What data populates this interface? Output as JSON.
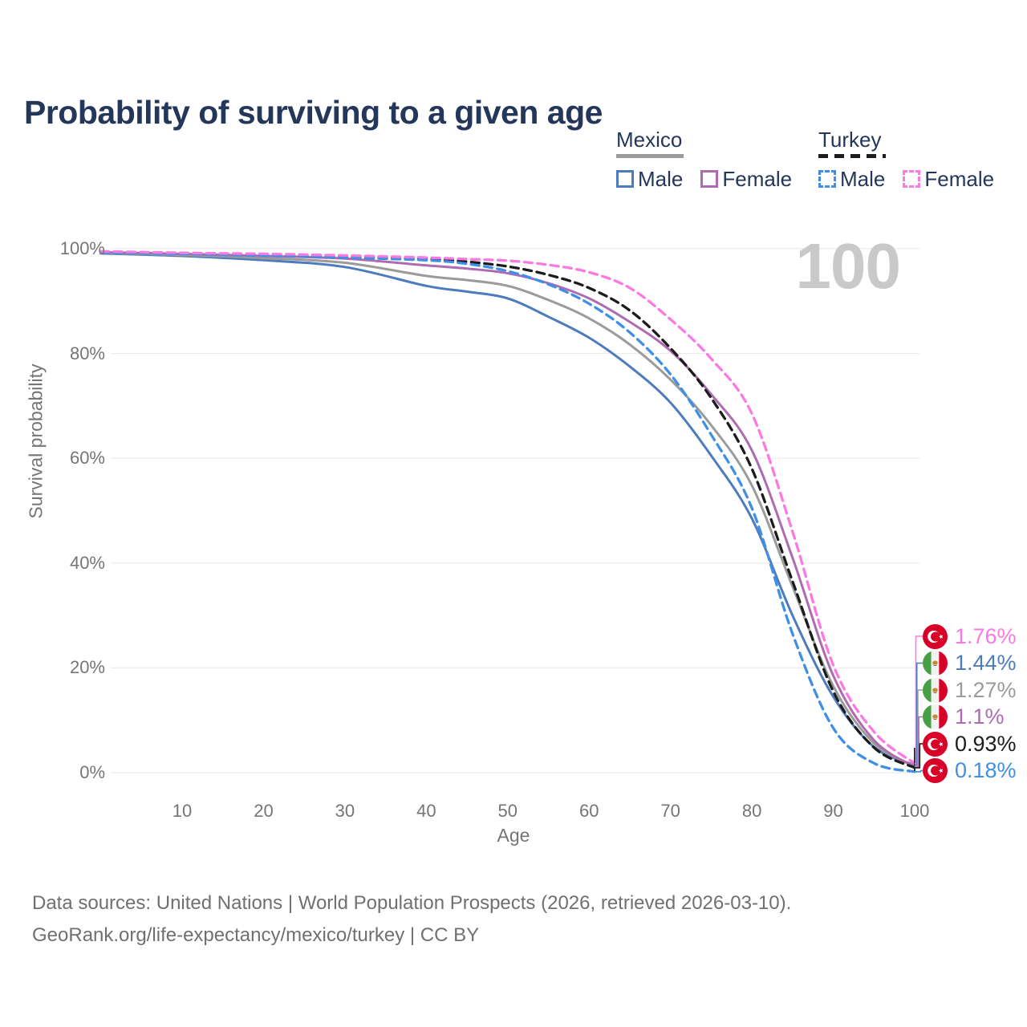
{
  "title": "Probability of surviving to a given age",
  "watermark": "100",
  "theme": {
    "title_color": "#24365a",
    "legend_text_color": "#24365a",
    "axis_text_color": "#757575",
    "grid_color": "#ececec",
    "watermark_color": "#c9c9c9",
    "footer_color": "#707070",
    "marker_color": "#2b2b2b"
  },
  "legend": {
    "groups": [
      {
        "title": "Mexico",
        "line": {
          "color": "#9b9b9b",
          "dash": false
        },
        "items": [
          {
            "label": "Male",
            "color": "#4d7cbe",
            "dash": false
          },
          {
            "label": "Female",
            "color": "#ae6cb0",
            "dash": false
          }
        ]
      },
      {
        "title": "Turkey",
        "line": {
          "color": "#1c1c1c",
          "dash": true
        },
        "items": [
          {
            "label": "Male",
            "color": "#3f8fe6",
            "dash": true
          },
          {
            "label": "Female",
            "color": "#fa7ae2",
            "dash": true
          }
        ]
      }
    ]
  },
  "chart_data": {
    "type": "line",
    "title": "Probability of surviving to a given age",
    "xlabel": "Age",
    "ylabel": "Survival probability",
    "xlim": [
      0,
      100
    ],
    "ylim": [
      0,
      100
    ],
    "grid": "horizontal",
    "x_ticks": [
      10,
      20,
      30,
      40,
      50,
      60,
      70,
      80,
      90,
      100
    ],
    "y_ticks_percent": [
      0,
      20,
      40,
      60,
      80,
      100
    ],
    "hover_age": 100,
    "ages": [
      0,
      10,
      20,
      30,
      40,
      45,
      50,
      55,
      60,
      65,
      70,
      75,
      80,
      85,
      90,
      95,
      100
    ],
    "series": [
      {
        "id": "mexico-male",
        "name": "Mexico Male",
        "country": "mexico",
        "sex": "male",
        "color": "#4d7cbe",
        "dash": false,
        "values": [
          99.1,
          98.6,
          97.8,
          96.5,
          92.9,
          91.8,
          90.5,
          87.0,
          83.0,
          77.5,
          70.6,
          60.5,
          48.5,
          30.0,
          14.5,
          4.9,
          1.44
        ],
        "end_label": "1.44%"
      },
      {
        "id": "mexico-total",
        "name": "Mexico",
        "country": "mexico",
        "sex": "both",
        "color": "#9b9b9b",
        "dash": false,
        "values": [
          99.2,
          98.8,
          98.2,
          97.3,
          94.8,
          94.0,
          92.9,
          90.2,
          86.7,
          81.7,
          75.0,
          66.3,
          54.8,
          35.5,
          16.5,
          5.6,
          1.27
        ],
        "end_label": "1.27%"
      },
      {
        "id": "mexico-female",
        "name": "Mexico Female",
        "country": "mexico",
        "sex": "female",
        "color": "#ae6cb0",
        "dash": false,
        "values": [
          99.3,
          99.0,
          98.6,
          98.1,
          96.8,
          96.2,
          95.3,
          93.4,
          90.5,
          86.0,
          80.5,
          72.2,
          61.5,
          41.0,
          18.5,
          6.2,
          1.1
        ],
        "end_label": "1.1%"
      },
      {
        "id": "turkey-total",
        "name": "Turkey",
        "country": "turkey",
        "sex": "both",
        "color": "#1c1c1c",
        "dash": true,
        "values": [
          99.4,
          99.1,
          98.8,
          98.5,
          98.0,
          97.5,
          96.6,
          95.0,
          92.5,
          88.2,
          81.0,
          71.5,
          58.0,
          36.5,
          15.5,
          4.8,
          0.93
        ],
        "end_label": "0.93%"
      },
      {
        "id": "turkey-male",
        "name": "Turkey Male",
        "country": "turkey",
        "sex": "male",
        "color": "#3f8fe6",
        "dash": true,
        "values": [
          99.3,
          99.0,
          98.7,
          98.3,
          97.8,
          97.1,
          95.7,
          93.2,
          89.5,
          84.0,
          76.0,
          64.5,
          50.5,
          26.5,
          8.5,
          1.8,
          0.18
        ],
        "end_label": "0.18%"
      },
      {
        "id": "turkey-female",
        "name": "Turkey Female",
        "country": "turkey",
        "sex": "female",
        "color": "#fa7ae2",
        "dash": true,
        "values": [
          99.5,
          99.2,
          99.0,
          98.7,
          98.3,
          98.0,
          97.7,
          96.9,
          95.5,
          92.5,
          86.5,
          79.0,
          68.5,
          46.0,
          20.5,
          7.8,
          1.76
        ],
        "end_label": "1.76%"
      }
    ]
  },
  "footer": {
    "line1": "Data sources: United Nations | World Population Prospects (2026, retrieved 2026-03-10).",
    "line2": "GeoRank.org/life-expectancy/mexico/turkey | CC BY"
  }
}
